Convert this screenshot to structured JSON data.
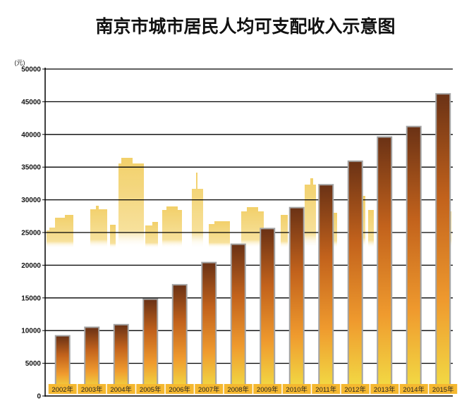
{
  "chart_data": {
    "type": "bar",
    "title": "南京市城市居民人均可支配收入示意图",
    "ylabel": "(元)",
    "xlabel": "",
    "ylim": [
      0,
      50000
    ],
    "yticks": [
      0,
      5000,
      10000,
      15000,
      20000,
      25000,
      30000,
      35000,
      40000,
      45000,
      50000
    ],
    "grid": true,
    "categories": [
      "2002年",
      "2003年",
      "2004年",
      "2005年",
      "2006年",
      "2007年",
      "2008年",
      "2009年",
      "2010年",
      "2011年",
      "2012年",
      "2013年",
      "2014年",
      "2015年"
    ],
    "values": [
      9100,
      10400,
      10800,
      14700,
      16900,
      20300,
      23100,
      25500,
      28700,
      32200,
      35800,
      39500,
      41100,
      46100
    ]
  },
  "colors": {
    "bar_top": "#6b3215",
    "bar_mid": "#e0801e",
    "bar_bottom": "#f2dc45",
    "bar_frame": "#9a9a9a",
    "label_bg": "#f5b830",
    "skyline": "#f2cf62",
    "grid": "#000000"
  }
}
